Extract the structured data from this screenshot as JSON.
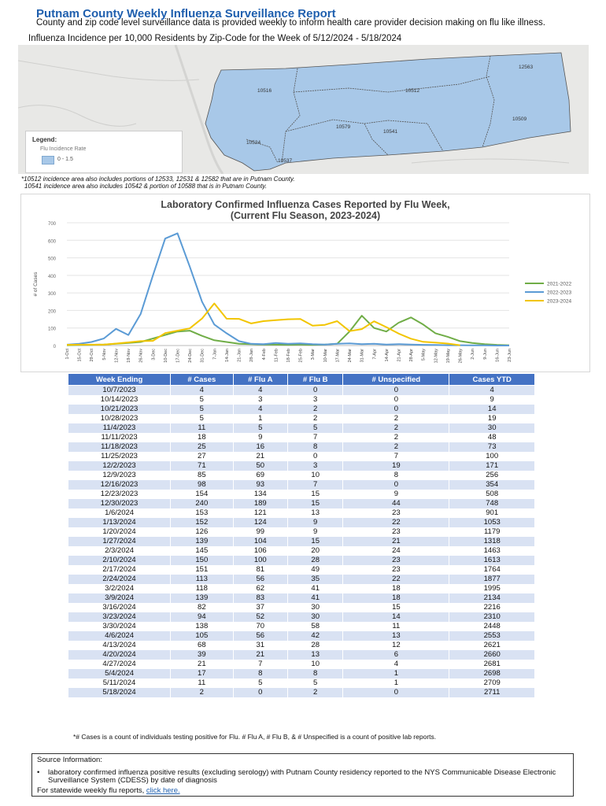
{
  "report": {
    "title": "Putnam County Weekly Influenza Surveillance Report",
    "subtitle": "County and zip code level surveillance data is provided weekly to inform health care provider decision making on flu like illness.",
    "map_title": "Influenza Incidence per 10,000 Residents by Zip-Code for the Week of 5/12/2024 - 5/18/2024"
  },
  "map": {
    "zip_labels": [
      "10516",
      "10512",
      "12563",
      "10509",
      "10579",
      "10541",
      "10524",
      "10537"
    ],
    "legend_title": "Legend:",
    "legend_sub": "Flu Incidence Rate",
    "legend_item": "0 - 1.5",
    "fill_color": "#a8c8e8"
  },
  "map_notes": [
    "*10512 incidence area also includes portions of 12533, 12531 & 12582 that are in Putnam County.",
    "10541 incidence area also includes 10542 & portion of 10588 that is in Putnam County."
  ],
  "chart_data": {
    "type": "line",
    "title_line1": "Laboratory Confirmed Influenza Cases Reported by Flu Week,",
    "title_line2": "(Current Flu Season, 2023-2024)",
    "ylabel": "# of Cases",
    "ylim": [
      0,
      700
    ],
    "yticks": [
      0,
      100,
      200,
      300,
      400,
      500,
      600,
      700
    ],
    "categories": [
      "1-Oct",
      "15-Oct",
      "29-Oct",
      "5-Nov",
      "12-Nov",
      "19-Nov",
      "26-Nov",
      "3-Dec",
      "10-Dec",
      "17-Dec",
      "24-Dec",
      "31-Dec",
      "7-Jan",
      "14-Jan",
      "21-Jan",
      "28-Jan",
      "4-Feb",
      "11-Feb",
      "18-Feb",
      "25-Feb",
      "3-Mar",
      "10-Mar",
      "17-Mar",
      "24-Mar",
      "31-Mar",
      "7-Apr",
      "14-Apr",
      "21-Apr",
      "28-Apr",
      "5-May",
      "12-May",
      "19-May",
      "26-May",
      "2-Jun",
      "9-Jun",
      "16-Jun",
      "23-Jun"
    ],
    "tick_labels": [
      "1-Oct",
      "15-Oct",
      "29-Oct",
      "5-Nov",
      "12-Nov",
      "19-Nov",
      "26-Nov",
      "3-Dec",
      "10-Dec",
      "17-Dec",
      "24-Dec",
      "31-Dec",
      "7-Jan",
      "14-Jan",
      "21-Jan",
      "28-Jan",
      "4-Feb",
      "11-Feb",
      "18-Feb",
      "25-Feb",
      "3-Mar",
      "10-Mar",
      "17-Mar",
      "24-Mar",
      "31-Mar",
      "7-Apr",
      "14-Apr",
      "21-Apr",
      "28-Apr",
      "5-May",
      "12-May",
      "19-May",
      "26-May",
      "2-Jun",
      "9-Jun",
      "16-Jun",
      "23-Jun"
    ],
    "series": [
      {
        "name": "2021-2022",
        "color": "#70ad47",
        "values": [
          2,
          3,
          4,
          6,
          10,
          15,
          20,
          40,
          60,
          80,
          85,
          55,
          30,
          20,
          10,
          8,
          6,
          5,
          4,
          5,
          4,
          6,
          10,
          80,
          170,
          100,
          80,
          130,
          160,
          120,
          70,
          50,
          25,
          15,
          8,
          4,
          2
        ]
      },
      {
        "name": "2022-2023",
        "color": "#5b9bd5",
        "values": [
          5,
          10,
          20,
          40,
          95,
          60,
          180,
          400,
          610,
          640,
          450,
          250,
          120,
          70,
          25,
          10,
          8,
          15,
          10,
          12,
          8,
          6,
          10,
          12,
          8,
          10,
          6,
          8,
          6,
          4,
          3,
          2,
          2,
          1,
          1,
          0,
          0
        ]
      },
      {
        "name": "2023-2024",
        "color": "#f2c500",
        "values": [
          4,
          5,
          5,
          5,
          11,
          18,
          25,
          27,
          71,
          85,
          98,
          154,
          240,
          153,
          152,
          126,
          139,
          145,
          150,
          151,
          113,
          118,
          139,
          82,
          94,
          138,
          105,
          68,
          39,
          21,
          17,
          11,
          2,
          null,
          null,
          null,
          null
        ]
      }
    ],
    "legend_position": "right"
  },
  "table": {
    "headers": [
      "Week Ending",
      "# Cases",
      "# Flu A",
      "# Flu B",
      "# Unspecified",
      "Cases YTD"
    ],
    "rows": [
      [
        "10/7/2023",
        "4",
        "4",
        "0",
        "0",
        "4"
      ],
      [
        "10/14/2023",
        "5",
        "3",
        "3",
        "0",
        "9"
      ],
      [
        "10/21/2023",
        "5",
        "4",
        "2",
        "0",
        "14"
      ],
      [
        "10/28/2023",
        "5",
        "1",
        "2",
        "2",
        "19"
      ],
      [
        "11/4/2023",
        "11",
        "5",
        "5",
        "2",
        "30"
      ],
      [
        "11/11/2023",
        "18",
        "9",
        "7",
        "2",
        "48"
      ],
      [
        "11/18/2023",
        "25",
        "16",
        "8",
        "2",
        "73"
      ],
      [
        "11/25/2023",
        "27",
        "21",
        "0",
        "7",
        "100"
      ],
      [
        "12/2/2023",
        "71",
        "50",
        "3",
        "19",
        "171"
      ],
      [
        "12/9/2023",
        "85",
        "69",
        "10",
        "8",
        "256"
      ],
      [
        "12/16/2023",
        "98",
        "93",
        "7",
        "0",
        "354"
      ],
      [
        "12/23/2023",
        "154",
        "134",
        "15",
        "9",
        "508"
      ],
      [
        "12/30/2023",
        "240",
        "189",
        "15",
        "44",
        "748"
      ],
      [
        "1/6/2024",
        "153",
        "121",
        "13",
        "23",
        "901"
      ],
      [
        "1/13/2024",
        "152",
        "124",
        "9",
        "22",
        "1053"
      ],
      [
        "1/20/2024",
        "126",
        "99",
        "9",
        "23",
        "1179"
      ],
      [
        "1/27/2024",
        "139",
        "104",
        "15",
        "21",
        "1318"
      ],
      [
        "2/3/2024",
        "145",
        "106",
        "20",
        "24",
        "1463"
      ],
      [
        "2/10/2024",
        "150",
        "100",
        "28",
        "23",
        "1613"
      ],
      [
        "2/17/2024",
        "151",
        "81",
        "49",
        "23",
        "1764"
      ],
      [
        "2/24/2024",
        "113",
        "56",
        "35",
        "22",
        "1877"
      ],
      [
        "3/2/2024",
        "118",
        "62",
        "41",
        "18",
        "1995"
      ],
      [
        "3/9/2024",
        "139",
        "83",
        "41",
        "18",
        "2134"
      ],
      [
        "3/16/2024",
        "82",
        "37",
        "30",
        "15",
        "2216"
      ],
      [
        "3/23/2024",
        "94",
        "52",
        "30",
        "14",
        "2310"
      ],
      [
        "3/30/2024",
        "138",
        "70",
        "58",
        "11",
        "2448"
      ],
      [
        "4/6/2024",
        "105",
        "56",
        "42",
        "13",
        "2553"
      ],
      [
        "4/13/2024",
        "68",
        "31",
        "28",
        "12",
        "2621"
      ],
      [
        "4/20/2024",
        "39",
        "21",
        "13",
        "6",
        "2660"
      ],
      [
        "4/27/2024",
        "21",
        "7",
        "10",
        "4",
        "2681"
      ],
      [
        "5/4/2024",
        "17",
        "8",
        "8",
        "1",
        "2698"
      ],
      [
        "5/11/2024",
        "11",
        "5",
        "5",
        "1",
        "2709"
      ],
      [
        "5/18/2024",
        "2",
        "0",
        "2",
        "0",
        "2711"
      ]
    ]
  },
  "footnote": "*# Cases is a count of individuals testing positive for Flu. # Flu A, # Flu B, & # Unspecified is a count of positive lab reports.",
  "source": {
    "title": "Source Information:",
    "bullet": "laboratory confirmed influenza positive results (excluding serology) with Putnam County residency reported to the NYS Communicable Disease Electronic Surveillance System (CDESS) by date of diagnosis",
    "statewide_text": "For statewide weekly flu reports, ",
    "link_text": "click here."
  }
}
